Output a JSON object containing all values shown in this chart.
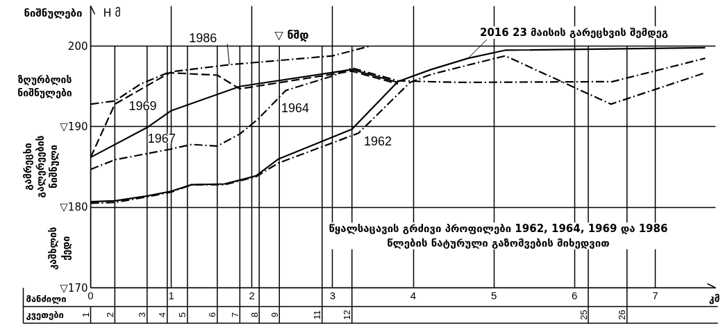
{
  "chart_data": {
    "type": "line",
    "ylabel": "ნიშნულები",
    "xlabel": "მანძილი",
    "xlim": [
      0,
      7.75
    ],
    "xticks": [
      0,
      1,
      2,
      3,
      4,
      5,
      6,
      7
    ],
    "ylim": [
      170,
      205
    ],
    "yticks": [
      {
        "value": 170,
        "label": "▽170"
      },
      {
        "value": 180,
        "label": "▽180"
      },
      {
        "value": 190,
        "label": "▽190"
      },
      200
    ],
    "grid": true,
    "series": [
      {
        "name": "1962",
        "color": "#000000",
        "line_style": "dashdot",
        "x": [
          0,
          0.3,
          0.7,
          1.0,
          1.25,
          1.66,
          2.05,
          2.33,
          3.32,
          3.96,
          4.22,
          5.14,
          6.45,
          7.62
        ],
        "values": [
          180.5,
          180.6,
          181.3,
          181.9,
          182.8,
          182.8,
          183.8,
          185.5,
          189.2,
          195.5,
          196.5,
          198.8,
          192.8,
          196.7
        ]
      },
      {
        "name": "1964",
        "color": "#000000",
        "line_style": "dashdot",
        "x": [
          0,
          0.3,
          0.98,
          1.25,
          1.57,
          1.85,
          2.07,
          2.42,
          3.0,
          3.24,
          3.81,
          4.59,
          6.47,
          7.62
        ],
        "values": [
          184.7,
          185.9,
          187.2,
          187.8,
          187.6,
          189.1,
          190.9,
          194.5,
          196.3,
          197.3,
          195.7,
          195.5,
          195.6,
          198.5
        ]
      },
      {
        "name": "1967",
        "color": "#000000",
        "line_style": "solid",
        "x": [
          0,
          0.7,
          1.0,
          1.85,
          3.24,
          3.81
        ],
        "values": [
          186.2,
          189.9,
          192.0,
          195.0,
          197.1,
          195.5
        ]
      },
      {
        "name": "1969",
        "color": "#000000",
        "line_style": "dashed",
        "x": [
          0,
          0.3,
          0.98,
          1.57,
          1.85,
          3.24,
          3.81
        ],
        "values": [
          186.2,
          192.8,
          196.7,
          196.4,
          194.7,
          196.9,
          195.3
        ]
      },
      {
        "name": "1986",
        "color": "#000000",
        "line_style": "dashdot",
        "x": [
          0,
          0.3,
          0.62,
          0.98,
          1.72,
          3.0,
          3.46
        ],
        "values": [
          192.8,
          193.2,
          195.3,
          196.8,
          197.7,
          198.8,
          200
        ]
      },
      {
        "name": "2016 23 მაისის გარეცხვის შემდეგ",
        "color": "#000000",
        "line_style": "solid",
        "x": [
          0,
          0.3,
          0.7,
          1.0,
          1.25,
          1.66,
          2.05,
          2.33,
          3.24,
          3.81,
          4.22,
          4.68,
          5.14,
          7.62
        ],
        "values": [
          180.7,
          180.8,
          181.4,
          182.0,
          182.8,
          182.9,
          183.9,
          186.0,
          189.7,
          195.6,
          197.1,
          198.5,
          199.5,
          199.8
        ]
      }
    ],
    "ref_lines": [
      {
        "axis": "x",
        "value": 0.3
      },
      {
        "axis": "x",
        "value": 0.7
      },
      {
        "axis": "x",
        "value": 0.95
      },
      {
        "axis": "x",
        "value": 1.2
      },
      {
        "axis": "x",
        "value": 1.57
      },
      {
        "axis": "x",
        "value": 1.85
      },
      {
        "axis": "x",
        "value": 2.09
      },
      {
        "axis": "x",
        "value": 2.34
      },
      {
        "axis": "x",
        "value": 2.87
      },
      {
        "axis": "x",
        "value": 3.24
      },
      {
        "axis": "x",
        "value": 6.17
      },
      {
        "axis": "x",
        "value": 6.65
      }
    ],
    "annotations": [
      "H მ",
      "კმ",
      "კვეთები",
      "ზღურბლის ნიშნულები",
      "გამრეცხი გალერეების ნიშნული",
      "კაშხლის ქედი",
      "წყალსაცავის გრძივი პროფილები 1962, 1964, 1969 და 1986\nწლების ნატურული გაზომვების მიხედვით",
      "▽ ნშდ",
      "1",
      "2",
      "3",
      "4",
      "5",
      "6",
      "7",
      "8",
      "9",
      "11",
      "12",
      "25",
      "26"
    ]
  }
}
